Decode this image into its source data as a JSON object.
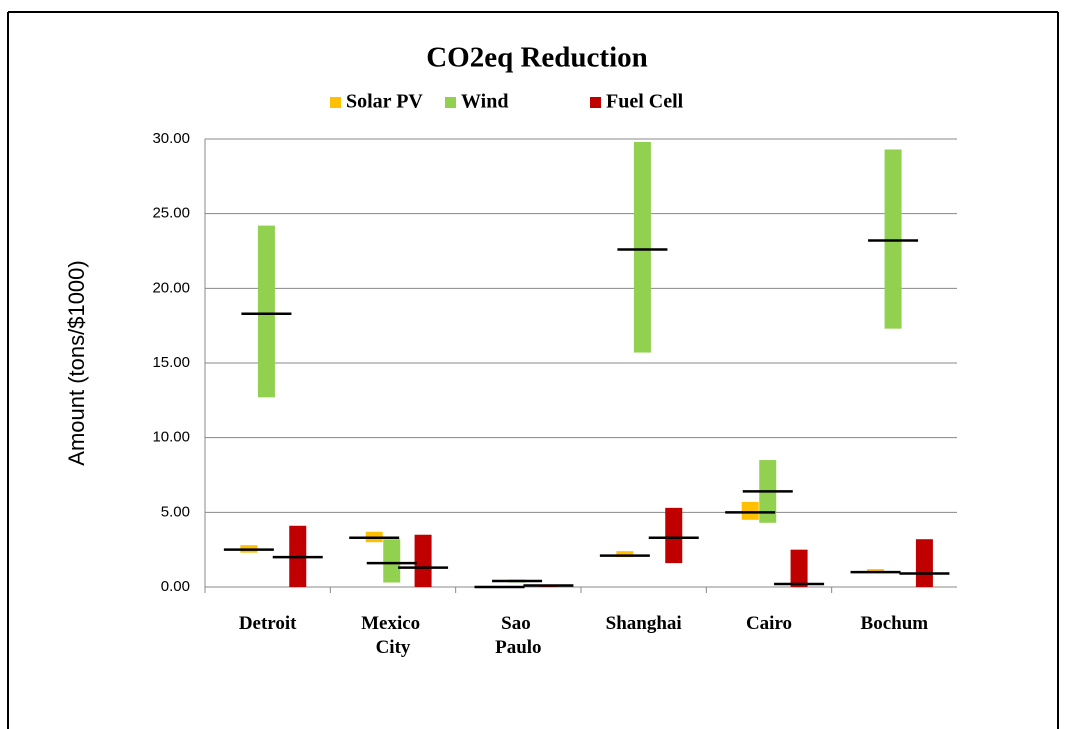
{
  "chart_data": {
    "type": "floating-bar",
    "title": "CO2eq Reduction",
    "y_label": "Amount (tons/$1000)",
    "categories": [
      "Detroit",
      "Mexico City",
      "Sao Paulo",
      "Shanghai",
      "Cairo",
      "Bochum"
    ],
    "series": [
      {
        "name": "Solar PV",
        "color": "#ffc000",
        "low": [
          2.3,
          3.0,
          -0.05,
          2.0,
          4.5,
          1.0
        ],
        "high": [
          2.8,
          3.7,
          0.0,
          2.4,
          5.7,
          1.2
        ],
        "mean": [
          2.5,
          3.3,
          0.0,
          2.1,
          5.0,
          1.0
        ]
      },
      {
        "name": "Wind",
        "color": "#92d050",
        "low": [
          12.7,
          0.3,
          0.3,
          15.7,
          4.3,
          17.3
        ],
        "high": [
          24.2,
          3.2,
          0.5,
          29.8,
          8.5,
          29.3
        ],
        "mean": [
          18.3,
          1.6,
          0.4,
          22.6,
          6.4,
          23.2
        ]
      },
      {
        "name": "Fuel Cell",
        "color": "#c00000",
        "low": [
          0.0,
          0.0,
          0.0,
          1.6,
          0.0,
          0.0
        ],
        "high": [
          4.1,
          3.5,
          0.15,
          5.3,
          2.5,
          3.2
        ],
        "mean": [
          2.0,
          1.3,
          0.1,
          3.3,
          0.2,
          0.9
        ]
      }
    ],
    "ylim": [
      0,
      30
    ],
    "yticks": [
      {
        "value": 0,
        "label": "0.00"
      },
      {
        "value": 5,
        "label": "5.00"
      },
      {
        "value": 10,
        "label": "10.00"
      },
      {
        "value": 15,
        "label": "15.00"
      },
      {
        "value": 20,
        "label": "20.00"
      },
      {
        "value": 25,
        "label": "25.00"
      },
      {
        "value": 30,
        "label": "30.00"
      }
    ],
    "grid": true,
    "legend": "top"
  }
}
